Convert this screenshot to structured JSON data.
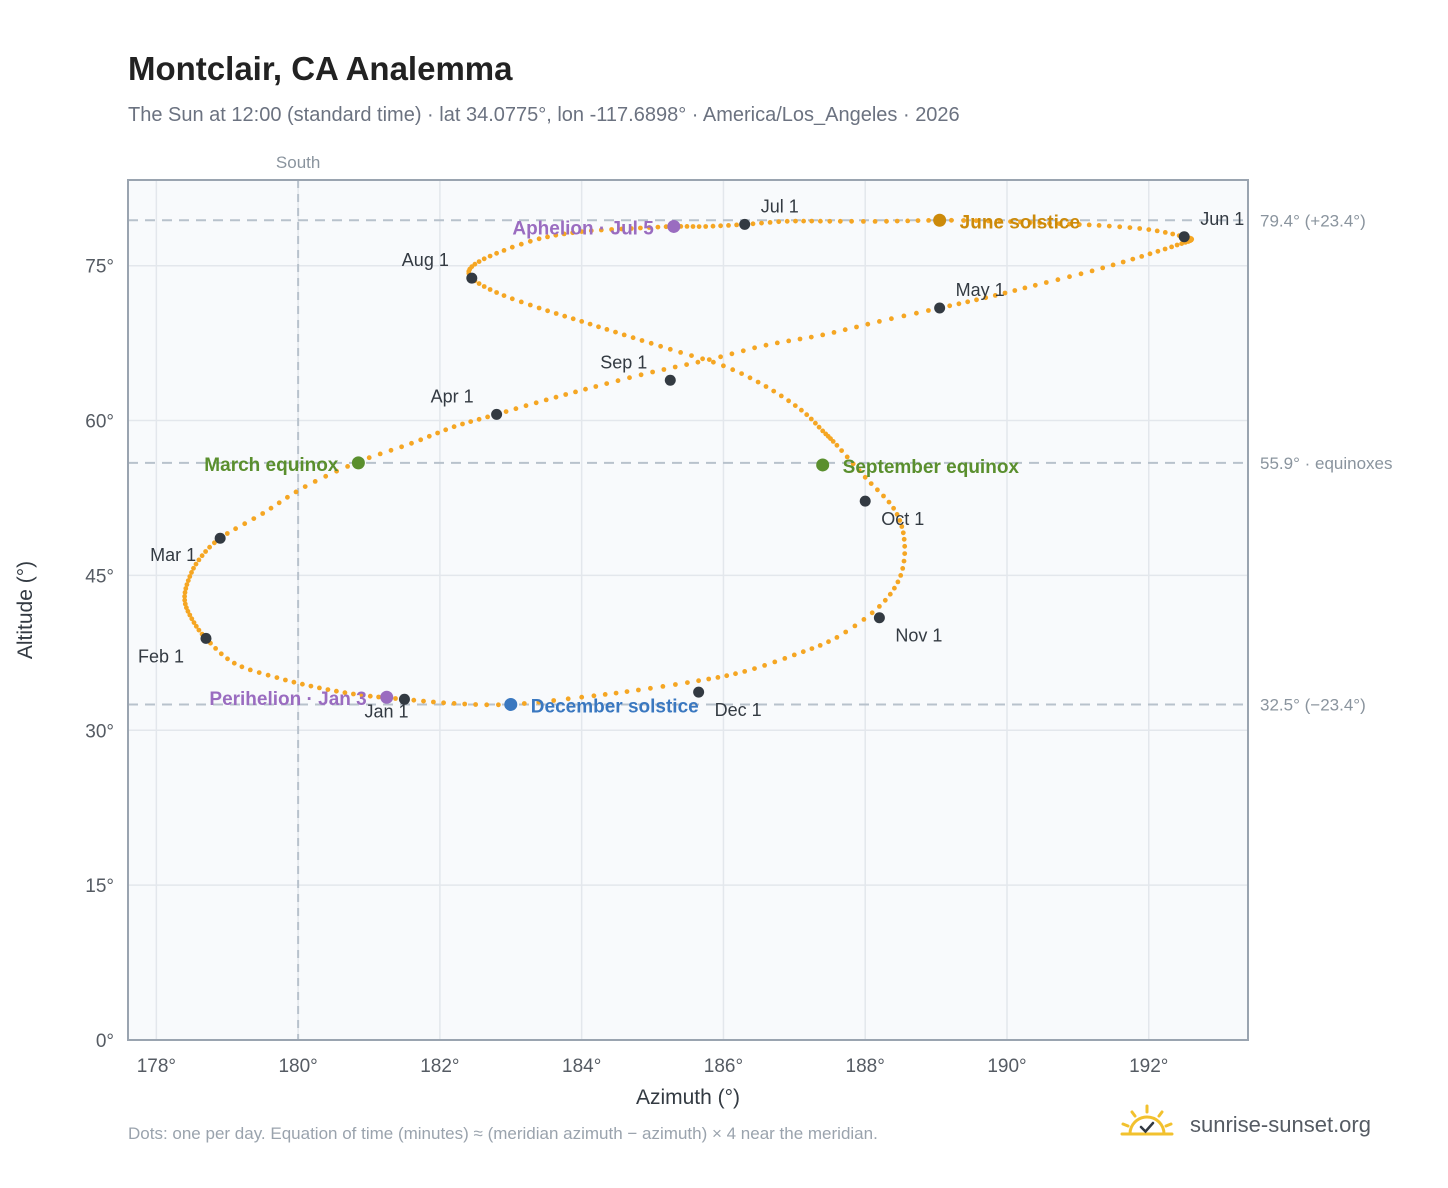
{
  "header": {
    "title": "Montclair, CA Analemma",
    "subtitle": "The Sun at 12:00 (standard time) · lat 34.0775°, lon -117.6898° · America/Los_Angeles · 2026"
  },
  "footer": {
    "note": "Dots: one per day. Equation of time (minutes) ≈ (meridian azimuth − azimuth) × 4 near the meridian.",
    "brand": "sunrise-sunset.org"
  },
  "colors": {
    "path": "#f5a623",
    "month_marker": "#333a42",
    "equinox": "#5a8f2e",
    "june_solstice": "#cc8a0a",
    "december_solstice": "#3a78c0",
    "apsis": "#9a6cc0",
    "reference_line": "#b8c2cc",
    "grid": "#e3e7ec",
    "plot_bg": "#f8fafc"
  },
  "chart_data": {
    "type": "scatter",
    "title": "Montclair, CA Analemma",
    "xlabel": "Azimuth (°)",
    "ylabel": "Altitude (°)",
    "xlim": [
      177.6,
      193.4
    ],
    "ylim": [
      0,
      83.3
    ],
    "x_ticks": [
      178,
      180,
      182,
      184,
      186,
      188,
      190,
      192
    ],
    "x_tick_labels": [
      "178°",
      "180°",
      "182°",
      "184°",
      "186°",
      "188°",
      "190°",
      "192°"
    ],
    "y_ticks": [
      0,
      15,
      30,
      45,
      60,
      75
    ],
    "y_tick_labels": [
      "0°",
      "15°",
      "30°",
      "45°",
      "60°",
      "75°"
    ],
    "grid": true,
    "meridian": {
      "azimuth": 180,
      "label": "South"
    },
    "reference_lines": [
      {
        "altitude": 79.4,
        "label": "79.4° (+23.4°)"
      },
      {
        "altitude": 55.9,
        "label": "55.9° · equinoxes"
      },
      {
        "altitude": 32.5,
        "label": "32.5° (−23.4°)"
      }
    ],
    "path_points": [
      [
        181.5,
        33.0
      ],
      [
        180.9,
        33.4
      ],
      [
        180.3,
        34.1
      ],
      [
        179.7,
        35.1
      ],
      [
        179.1,
        36.5
      ],
      [
        178.7,
        38.9
      ],
      [
        178.5,
        40.8
      ],
      [
        178.4,
        42.6
      ],
      [
        178.45,
        44.5
      ],
      [
        178.6,
        46.5
      ],
      [
        178.9,
        48.6
      ],
      [
        179.5,
        51.0
      ],
      [
        180.1,
        53.6
      ],
      [
        180.85,
        56.0
      ],
      [
        181.6,
        57.8
      ],
      [
        182.2,
        59.4
      ],
      [
        182.8,
        60.6
      ],
      [
        183.5,
        62.0
      ],
      [
        184.2,
        63.3
      ],
      [
        185.0,
        64.7
      ],
      [
        185.8,
        65.9
      ],
      [
        186.6,
        67.3
      ],
      [
        187.4,
        68.3
      ],
      [
        188.2,
        69.6
      ],
      [
        189.05,
        70.9
      ],
      [
        189.7,
        71.9
      ],
      [
        190.4,
        73.1
      ],
      [
        191.2,
        74.5
      ],
      [
        191.9,
        75.9
      ],
      [
        192.4,
        77.0
      ],
      [
        192.6,
        77.5
      ],
      [
        192.5,
        77.8
      ],
      [
        192.0,
        78.5
      ],
      [
        191.3,
        78.9
      ],
      [
        190.6,
        79.1
      ],
      [
        189.9,
        79.3
      ],
      [
        189.05,
        79.4
      ],
      [
        188.3,
        79.3
      ],
      [
        187.5,
        79.3
      ],
      [
        186.9,
        79.3
      ],
      [
        186.3,
        79.0
      ],
      [
        185.75,
        78.8
      ],
      [
        185.3,
        78.8
      ],
      [
        184.7,
        78.6
      ],
      [
        184.0,
        78.3
      ],
      [
        183.4,
        77.6
      ],
      [
        182.8,
        76.2
      ],
      [
        182.45,
        74.9
      ],
      [
        182.45,
        73.8
      ],
      [
        182.8,
        72.4
      ],
      [
        183.4,
        70.9
      ],
      [
        184.0,
        69.6
      ],
      [
        184.6,
        68.3
      ],
      [
        185.25,
        66.9
      ],
      [
        186.0,
        65.3
      ],
      [
        186.6,
        63.3
      ],
      [
        187.1,
        61.0
      ],
      [
        187.4,
        59.0
      ],
      [
        187.6,
        57.6
      ],
      [
        188.0,
        54.5
      ],
      [
        188.4,
        51.5
      ],
      [
        188.55,
        48.5
      ],
      [
        188.5,
        45.0
      ],
      [
        188.2,
        42.0
      ],
      [
        187.6,
        39.0
      ],
      [
        187.0,
        37.3
      ],
      [
        186.3,
        35.7
      ],
      [
        185.65,
        34.8
      ],
      [
        184.8,
        33.9
      ],
      [
        184.0,
        33.2
      ],
      [
        183.0,
        32.5
      ],
      [
        182.2,
        32.6
      ],
      [
        181.5,
        33.0
      ]
    ],
    "month_markers": [
      {
        "label": "Jan 1",
        "x": 181.5,
        "y": 33.0
      },
      {
        "label": "Feb 1",
        "x": 178.7,
        "y": 38.9
      },
      {
        "label": "Mar 1",
        "x": 178.9,
        "y": 48.6
      },
      {
        "label": "Apr 1",
        "x": 182.8,
        "y": 60.6
      },
      {
        "label": "May 1",
        "x": 189.05,
        "y": 70.9
      },
      {
        "label": "Jun 1",
        "x": 192.5,
        "y": 77.8
      },
      {
        "label": "Jul 1",
        "x": 186.3,
        "y": 79.0
      },
      {
        "label": "Aug 1",
        "x": 182.45,
        "y": 73.8
      },
      {
        "label": "Sep 1",
        "x": 185.25,
        "y": 63.9
      },
      {
        "label": "Oct 1",
        "x": 188.0,
        "y": 52.2
      },
      {
        "label": "Nov 1",
        "x": 188.2,
        "y": 40.9
      },
      {
        "label": "Dec 1",
        "x": 185.65,
        "y": 33.7
      }
    ],
    "events": [
      {
        "label": "March equinox",
        "x": 180.85,
        "y": 55.9,
        "kind": "equinox"
      },
      {
        "label": "September equinox",
        "x": 187.4,
        "y": 55.7,
        "kind": "equinox"
      },
      {
        "label": "June solstice",
        "x": 189.05,
        "y": 79.4,
        "kind": "june_solstice"
      },
      {
        "label": "December solstice",
        "x": 183.0,
        "y": 32.5,
        "kind": "december_solstice"
      },
      {
        "label": "Aphelion · Jul 5",
        "x": 185.3,
        "y": 78.8,
        "kind": "apsis"
      },
      {
        "label": "Perihelion · Jan 3",
        "x": 181.25,
        "y": 33.2,
        "kind": "apsis"
      }
    ]
  }
}
